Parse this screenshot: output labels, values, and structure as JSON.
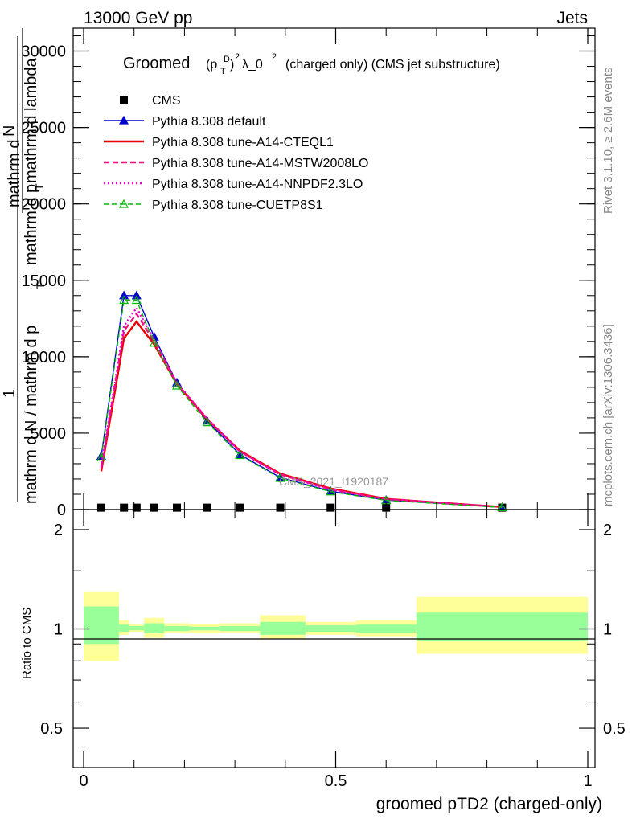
{
  "header": {
    "left": "13000 GeV pp",
    "right": "Jets"
  },
  "side": {
    "rivet": "Rivet 3.1.10, ≥ 2.6M events",
    "mcplots": "mcplots.cern.ch [arXiv:1306.3436]"
  },
  "title": {
    "main": "Groomed",
    "formula": "(p",
    "sup_d": "D",
    "sub_t": "T",
    "paren_close": ")",
    "sq": "2",
    "lambda": "λ_0",
    "sq2": "2",
    "rest": "(charged only) (CMS jet substructure)"
  },
  "ylabel_main": {
    "numer1": "mathrm d",
    "numer1b": "N",
    "numer2": "mathrm d p",
    "numer2b": "T",
    "numer3": "mathrm d lambda",
    "frac_one": "1",
    "denom": "mathrm d N / mathrm d p",
    "denom_sub": "T"
  },
  "watermark": "CMS_2021_I1920187",
  "ratio_ylabel": "Ratio to CMS",
  "xlabel": "groomed pTD2 (charged-only)",
  "colors": {
    "cms": "#000000",
    "default": "#0000cc",
    "cteql1": "#ee0000",
    "mstw": "#ee1177",
    "nnpdf": "#ee00cc",
    "cuetp8s1": "#00bb00",
    "band_outer": "#ffff99",
    "band_inner": "#99ff99"
  },
  "chart_data": {
    "type": "line",
    "x_ticks": [
      "0",
      "0.5",
      "1"
    ],
    "y_ticks_main": [
      "0",
      "5000",
      "10000",
      "15000",
      "20000",
      "25000",
      "30000"
    ],
    "y_ticks_ratio": [
      "0.5",
      "1",
      "2"
    ],
    "xlim": [
      0,
      1
    ],
    "ylim_main": [
      0,
      31500
    ],
    "ylim_ratio": [
      0.38,
      2.3
    ],
    "ratio_log": true,
    "legend_position": "top-left",
    "x": [
      0.035,
      0.08,
      0.105,
      0.14,
      0.185,
      0.245,
      0.31,
      0.39,
      0.49,
      0.6,
      0.83
    ],
    "bins": [
      [
        0.0,
        0.07
      ],
      [
        0.07,
        0.09
      ],
      [
        0.09,
        0.12
      ],
      [
        0.12,
        0.16
      ],
      [
        0.16,
        0.21
      ],
      [
        0.21,
        0.27
      ],
      [
        0.27,
        0.35
      ],
      [
        0.35,
        0.44
      ],
      [
        0.44,
        0.54
      ],
      [
        0.54,
        0.66
      ],
      [
        0.66,
        1.0
      ]
    ],
    "series": [
      {
        "name": "CMS",
        "key": "cms",
        "values": [
          20,
          20,
          20,
          20,
          20,
          20,
          20,
          20,
          20,
          20,
          20
        ]
      },
      {
        "name": "Pythia 8.308 default",
        "key": "default",
        "values": [
          3500,
          14000,
          14000,
          11300,
          8300,
          5800,
          3600,
          2100,
          1200,
          620,
          150
        ]
      },
      {
        "name": "Pythia 8.308 tune-A14-CTEQL1",
        "key": "cteql1",
        "values": [
          2500,
          11200,
          12300,
          10800,
          8200,
          5900,
          3850,
          2350,
          1380,
          700,
          165
        ]
      },
      {
        "name": "Pythia 8.308 tune-A14-MSTW2008LO",
        "key": "mstw",
        "values": [
          2700,
          11700,
          12800,
          11000,
          8250,
          5950,
          3800,
          2300,
          1320,
          680,
          160
        ]
      },
      {
        "name": "Pythia 8.308 tune-A14-NNPDF2.3LO",
        "key": "nnpdf",
        "values": [
          2800,
          12000,
          13200,
          11100,
          8300,
          5950,
          3800,
          2280,
          1300,
          670,
          160
        ]
      },
      {
        "name": "Pythia 8.308 tune-CUETP8S1",
        "key": "cuetp8s1",
        "values": [
          3400,
          13700,
          13700,
          10900,
          8100,
          5700,
          3550,
          2050,
          1170,
          600,
          140
        ]
      }
    ],
    "ratio_bands": [
      {
        "lo_outer": 0.8,
        "hi_outer": 1.3,
        "lo_inner": 0.9,
        "hi_inner": 1.17
      },
      {
        "lo_outer": 0.96,
        "hi_outer": 1.06,
        "lo_inner": 0.98,
        "hi_inner": 1.03
      },
      {
        "lo_outer": 0.98,
        "hi_outer": 1.03,
        "lo_inner": 0.99,
        "hi_inner": 1.02
      },
      {
        "lo_outer": 0.94,
        "hi_outer": 1.08,
        "lo_inner": 0.97,
        "hi_inner": 1.04
      },
      {
        "lo_outer": 0.97,
        "hi_outer": 1.04,
        "lo_inner": 0.985,
        "hi_inner": 1.02
      },
      {
        "lo_outer": 0.975,
        "hi_outer": 1.035,
        "lo_inner": 0.99,
        "hi_inner": 1.015
      },
      {
        "lo_outer": 0.97,
        "hi_outer": 1.04,
        "lo_inner": 0.985,
        "hi_inner": 1.02
      },
      {
        "lo_outer": 0.93,
        "hi_outer": 1.1,
        "lo_inner": 0.96,
        "hi_inner": 1.05
      },
      {
        "lo_outer": 0.96,
        "hi_outer": 1.05,
        "lo_inner": 0.98,
        "hi_inner": 1.025
      },
      {
        "lo_outer": 0.95,
        "hi_outer": 1.06,
        "lo_inner": 0.975,
        "hi_inner": 1.03
      },
      {
        "lo_outer": 0.84,
        "hi_outer": 1.25,
        "lo_inner": 0.92,
        "hi_inner": 1.12
      }
    ]
  }
}
